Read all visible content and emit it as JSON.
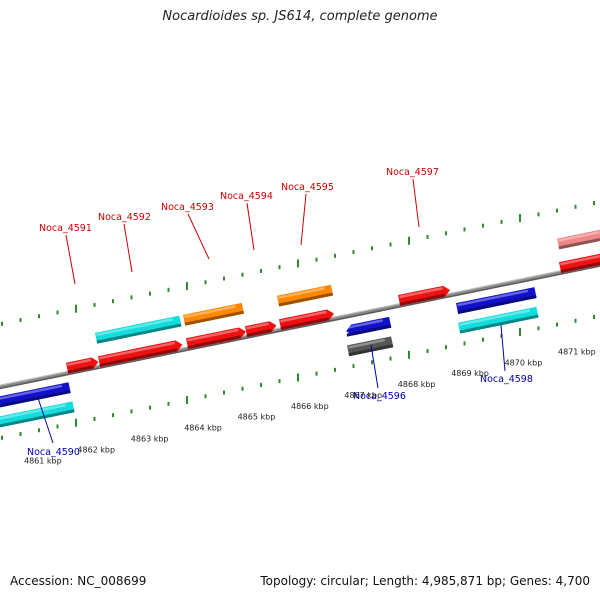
{
  "header": {
    "title": "Nocardioides sp. JS614, complete genome"
  },
  "footer": {
    "accession": "Accession: NC_008699",
    "summary": "Topology: circular; Length: 4,985,871 bp; Genes: 4,700"
  },
  "colors": {
    "backbone": "#8a8a8a",
    "tick": "#2e8b2e",
    "forward_label": "#cc0000",
    "reverse_label": "#0000aa",
    "red": "#ee1111",
    "orange": "#ff8800",
    "cyan": "#11dddd",
    "blue": "#1111cc",
    "gray": "#555555",
    "pink": "#ee8888"
  },
  "scale_labels": [
    {
      "kbp": 4861,
      "text": "4861 kbp"
    },
    {
      "kbp": 4862,
      "text": "4862 kbp"
    },
    {
      "kbp": 4863,
      "text": "4863 kbp"
    },
    {
      "kbp": 4864,
      "text": "4864 kbp"
    },
    {
      "kbp": 4865,
      "text": "4865 kbp"
    },
    {
      "kbp": 4866,
      "text": "4866 kbp"
    },
    {
      "kbp": 4867,
      "text": "4867 kbp"
    },
    {
      "kbp": 4868,
      "text": "4868 kbp"
    },
    {
      "kbp": 4869,
      "text": "4869 kbp"
    },
    {
      "kbp": 4870,
      "text": "4870 kbp"
    },
    {
      "kbp": 4871,
      "text": "4871 kbp"
    }
  ],
  "gene_labels": [
    {
      "text": "Noca_4590",
      "strand": "reverse"
    },
    {
      "text": "Noca_4591",
      "strand": "forward"
    },
    {
      "text": "Noca_4592",
      "strand": "forward"
    },
    {
      "text": "Noca_4593",
      "strand": "forward"
    },
    {
      "text": "Noca_4594",
      "strand": "forward"
    },
    {
      "text": "Noca_4595",
      "strand": "forward"
    },
    {
      "text": "Noca_4596",
      "strand": "reverse"
    },
    {
      "text": "Noca_4597",
      "strand": "forward"
    },
    {
      "text": "Noca_4598",
      "strand": "reverse"
    }
  ],
  "features": [
    {
      "color": "cyan",
      "strand": "forward",
      "ring": "outer"
    },
    {
      "color": "red",
      "strand": "forward",
      "ring": "inner"
    },
    {
      "color": "red",
      "strand": "forward",
      "ring": "inner"
    },
    {
      "color": "orange",
      "strand": "forward",
      "ring": "outer"
    },
    {
      "color": "red",
      "strand": "forward",
      "ring": "inner"
    },
    {
      "color": "red",
      "strand": "forward",
      "ring": "inner"
    },
    {
      "color": "orange",
      "strand": "forward",
      "ring": "outer"
    },
    {
      "color": "red",
      "strand": "forward",
      "ring": "inner"
    },
    {
      "color": "red",
      "strand": "forward",
      "ring": "inner"
    },
    {
      "color": "pink",
      "strand": "forward",
      "ring": "outer"
    },
    {
      "color": "red",
      "strand": "forward",
      "ring": "inner"
    },
    {
      "color": "blue",
      "strand": "reverse",
      "ring": "inner"
    },
    {
      "color": "cyan",
      "strand": "reverse",
      "ring": "outer"
    },
    {
      "color": "blue",
      "strand": "reverse",
      "ring": "inner"
    },
    {
      "color": "gray",
      "strand": "reverse",
      "ring": "outer"
    },
    {
      "color": "blue",
      "strand": "reverse",
      "ring": "inner"
    },
    {
      "color": "cyan",
      "strand": "reverse",
      "ring": "outer"
    }
  ]
}
